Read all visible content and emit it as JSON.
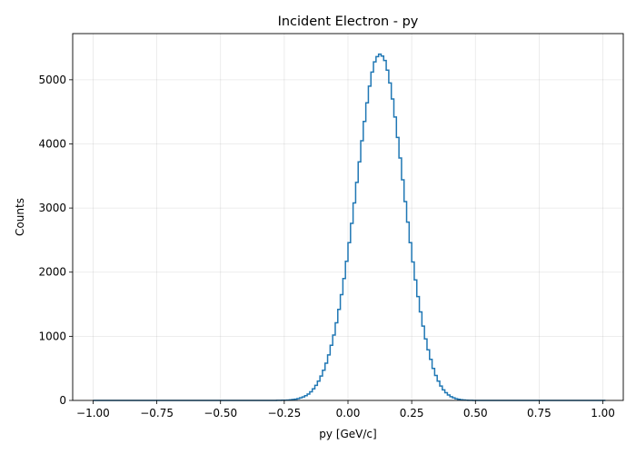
{
  "chart_data": {
    "type": "histogram",
    "title": "Incident Electron - py",
    "xlabel": "py [GeV/c]",
    "ylabel": "Counts",
    "xlim": [
      -1.08,
      1.08
    ],
    "ylim": [
      0,
      5720
    ],
    "xticks": [
      -1.0,
      -0.75,
      -0.5,
      -0.25,
      0.0,
      0.25,
      0.5,
      0.75,
      1.0
    ],
    "xtick_labels": [
      "−1.00",
      "−0.75",
      "−0.50",
      "−0.25",
      "0.00",
      "0.25",
      "0.50",
      "0.75",
      "1.00"
    ],
    "yticks": [
      0,
      1000,
      2000,
      3000,
      4000,
      5000
    ],
    "ytick_labels": [
      "0",
      "1000",
      "2000",
      "3000",
      "4000",
      "5000"
    ],
    "grid": true,
    "color": "#1f77b4",
    "bin_range": [
      -1.0,
      1.0
    ],
    "bin_width": 0.01,
    "counts": [
      0,
      0,
      0,
      0,
      0,
      0,
      0,
      0,
      0,
      0,
      0,
      0,
      0,
      0,
      0,
      0,
      0,
      0,
      0,
      0,
      0,
      0,
      0,
      0,
      0,
      0,
      0,
      0,
      0,
      0,
      0,
      0,
      0,
      0,
      0,
      0,
      0,
      0,
      0,
      0,
      0,
      0,
      0,
      0,
      0,
      0,
      0,
      0,
      0,
      0,
      0,
      0,
      0,
      0,
      0,
      0,
      0,
      0,
      0,
      0,
      0,
      0,
      0,
      0,
      0,
      0,
      0,
      0,
      0,
      0,
      0,
      0,
      1,
      2,
      3,
      4,
      6,
      9,
      14,
      20,
      29,
      40,
      55,
      75,
      100,
      135,
      180,
      235,
      300,
      380,
      470,
      580,
      710,
      860,
      1020,
      1210,
      1420,
      1650,
      1900,
      2170,
      2460,
      2760,
      3080,
      3400,
      3720,
      4050,
      4350,
      4640,
      4900,
      5120,
      5280,
      5360,
      5400,
      5370,
      5300,
      5150,
      4950,
      4700,
      4420,
      4100,
      3780,
      3440,
      3100,
      2780,
      2460,
      2160,
      1880,
      1620,
      1380,
      1160,
      960,
      790,
      640,
      500,
      390,
      300,
      225,
      165,
      120,
      85,
      58,
      40,
      27,
      18,
      11,
      7,
      4,
      2,
      1,
      0,
      0,
      0,
      0,
      0,
      0,
      0,
      0,
      0,
      0,
      0,
      0,
      0,
      0,
      0,
      0,
      0,
      0,
      0,
      0,
      0,
      0,
      0,
      0,
      0,
      0,
      0,
      0,
      0,
      0,
      0,
      0,
      0,
      0,
      0,
      0,
      0,
      0,
      0,
      0,
      0,
      0,
      0,
      0,
      0,
      0,
      0,
      0,
      0,
      0,
      0,
      0
    ]
  }
}
